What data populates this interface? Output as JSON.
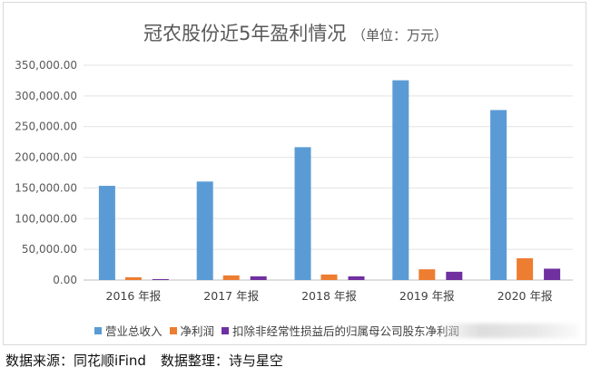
{
  "chart_data": {
    "type": "bar",
    "title": "冠农股份近5年盈利情况",
    "subtitle": "（单位：万元）",
    "categories": [
      "2016 年报",
      "2017 年报",
      "2018 年报",
      "2019 年报",
      "2020 年报"
    ],
    "series": [
      {
        "name": "营业总收入",
        "color": "#5b9bd5",
        "values": [
          153500,
          160500,
          216500,
          325500,
          277000
        ]
      },
      {
        "name": "净利润",
        "color": "#ed7d31",
        "values": [
          4500,
          7500,
          9000,
          17500,
          35500
        ]
      },
      {
        "name": "扣除非经常性损益后的归属母公司股东净利润",
        "color": "#7030a0",
        "values": [
          1500,
          6000,
          6000,
          13500,
          18500
        ]
      }
    ],
    "y_ticks": [
      "0.00",
      "50,000.00",
      "100,000.00",
      "150,000.00",
      "200,000.00",
      "250,000.00",
      "300,000.00",
      "350,000.00"
    ],
    "ylim": [
      0,
      350000
    ],
    "grid": true,
    "legend_position": "bottom"
  },
  "source_label": "数据来源：同花顺iFind",
  "compiler_label": "数据整理：诗与星空"
}
